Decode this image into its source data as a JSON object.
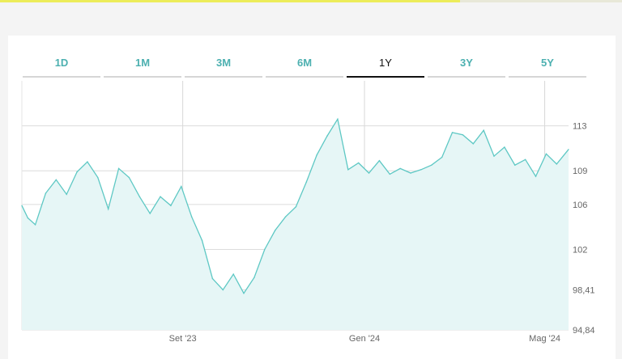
{
  "tabs": [
    {
      "label": "1D",
      "active": false
    },
    {
      "label": "1M",
      "active": false
    },
    {
      "label": "3M",
      "active": false
    },
    {
      "label": "6M",
      "active": false
    },
    {
      "label": "1Y",
      "active": true
    },
    {
      "label": "3Y",
      "active": false
    },
    {
      "label": "5Y",
      "active": false
    }
  ],
  "colors": {
    "accent": "#4cb0b0",
    "line": "#5ec8c4",
    "fill": "#e6f6f6",
    "active_tab": "#111111"
  },
  "chart_data": {
    "type": "area",
    "title": "",
    "xlabel": "",
    "ylabel": "",
    "ylim": [
      94.84,
      117
    ],
    "yticks": [
      "113",
      "109",
      "106",
      "102",
      "98,41",
      "94,84"
    ],
    "ytick_values": [
      113,
      109,
      106,
      102,
      98.41,
      94.84
    ],
    "xticks": [
      "Set '23",
      "Gen '24",
      "Mag '24"
    ],
    "xtick_values": [
      "2023-09-01",
      "2024-01-01",
      "2024-05-01"
    ],
    "x_range": [
      "2023-05-16",
      "2024-05-17"
    ],
    "grid": true,
    "series": [
      {
        "values_x": [
          "2023-05-16",
          "2023-05-20",
          "2023-05-25",
          "2023-06-01",
          "2023-06-08",
          "2023-06-15",
          "2023-06-22",
          "2023-06-29",
          "2023-07-06",
          "2023-07-13",
          "2023-07-20",
          "2023-07-27",
          "2023-08-03",
          "2023-08-10",
          "2023-08-17",
          "2023-08-24",
          "2023-08-31",
          "2023-09-07",
          "2023-09-14",
          "2023-09-21",
          "2023-09-28",
          "2023-10-05",
          "2023-10-12",
          "2023-10-19",
          "2023-10-26",
          "2023-11-02",
          "2023-11-09",
          "2023-11-16",
          "2023-11-23",
          "2023-11-30",
          "2023-12-07",
          "2023-12-14",
          "2023-12-21",
          "2023-12-28",
          "2024-01-04",
          "2024-01-11",
          "2024-01-18",
          "2024-01-25",
          "2024-02-01",
          "2024-02-08",
          "2024-02-15",
          "2024-02-22",
          "2024-02-29",
          "2024-03-07",
          "2024-03-14",
          "2024-03-21",
          "2024-03-28",
          "2024-04-04",
          "2024-04-11",
          "2024-04-18",
          "2024-04-25",
          "2024-05-02",
          "2024-05-09",
          "2024-05-17"
        ],
        "values_y": [
          105.9,
          104.8,
          104.2,
          107.0,
          108.2,
          106.9,
          108.9,
          109.8,
          108.4,
          105.6,
          109.2,
          108.4,
          106.7,
          105.2,
          106.7,
          105.9,
          107.6,
          104.9,
          102.8,
          99.4,
          98.4,
          99.8,
          98.1,
          99.5,
          102.0,
          103.7,
          104.9,
          105.8,
          108.0,
          110.4,
          112.1,
          113.6,
          109.1,
          109.7,
          108.8,
          109.9,
          108.7,
          109.2,
          108.8,
          109.1,
          109.5,
          110.2,
          112.4,
          112.2,
          111.4,
          112.6,
          110.3,
          111.1,
          109.5,
          110.0,
          108.5,
          110.5,
          109.6,
          110.9
        ]
      }
    ]
  }
}
